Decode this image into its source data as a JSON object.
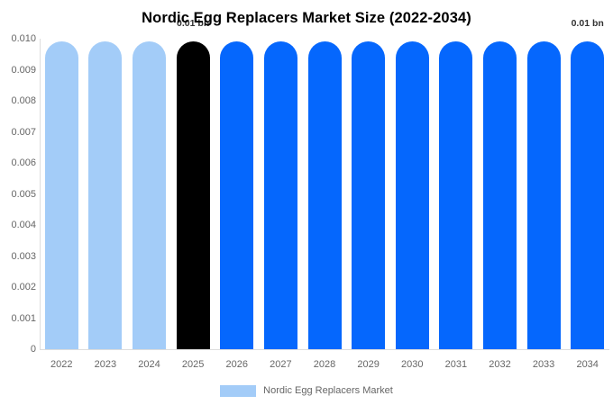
{
  "title": "Nordic Egg Replacers Market Size (2022-2034)",
  "colors": {
    "historical_bar": "#a3ccf8",
    "base_year_bar": "#000000",
    "forecast_bar": "#0567fd",
    "axis_line": "#dddddd",
    "tick_text": "#666666",
    "annotation_text": "#333333",
    "title_text": "#000000"
  },
  "legend": {
    "label": "Nordic Egg Replacers Market",
    "swatch_color": "#a3ccf8",
    "position": "bottom"
  },
  "chart_data": {
    "type": "bar",
    "title": "Nordic Egg Replacers Market Size (2022-2034)",
    "categories": [
      "2022",
      "2023",
      "2024",
      "2025",
      "2026",
      "2027",
      "2028",
      "2029",
      "2030",
      "2031",
      "2032",
      "2033",
      "2034"
    ],
    "values": [
      0.0099,
      0.0099,
      0.0099,
      0.0099,
      0.0099,
      0.0099,
      0.0099,
      0.0099,
      0.0099,
      0.0099,
      0.0099,
      0.0099,
      0.0099
    ],
    "bar_colors": [
      "#a3ccf8",
      "#a3ccf8",
      "#a3ccf8",
      "#000000",
      "#0567fd",
      "#0567fd",
      "#0567fd",
      "#0567fd",
      "#0567fd",
      "#0567fd",
      "#0567fd",
      "#0567fd",
      "#0567fd"
    ],
    "xlabel": "",
    "ylabel": "",
    "ylim": [
      0,
      0.01
    ],
    "grid": false,
    "legend_position": "bottom",
    "y_ticks": [
      {
        "value": 0,
        "label": "0"
      },
      {
        "value": 0.001,
        "label": "0.001"
      },
      {
        "value": 0.002,
        "label": "0.002"
      },
      {
        "value": 0.003,
        "label": "0.003"
      },
      {
        "value": 0.004,
        "label": "0.004"
      },
      {
        "value": 0.005,
        "label": "0.005"
      },
      {
        "value": 0.006,
        "label": "0.006"
      },
      {
        "value": 0.007,
        "label": "0.007"
      },
      {
        "value": 0.008,
        "label": "0.008"
      },
      {
        "value": 0.009,
        "label": "0.009"
      },
      {
        "value": 0.01,
        "label": "0.010"
      }
    ],
    "annotations": [
      {
        "category": "2025",
        "label": "0.01 bn"
      },
      {
        "category": "2034",
        "label": "0.01 bn"
      }
    ],
    "legend": {
      "label": "Nordic Egg Replacers Market",
      "color": "#a3ccf8"
    }
  }
}
